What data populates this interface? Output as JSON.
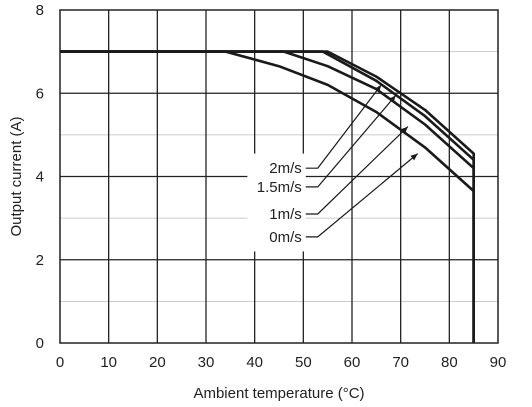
{
  "chart_data": {
    "type": "line",
    "xlabel": "Ambient temperature (°C)",
    "ylabel": "Output current (A)",
    "xlim": [
      0,
      90
    ],
    "ylim": [
      0,
      8
    ],
    "x_ticks": [
      0,
      10,
      20,
      30,
      40,
      50,
      60,
      70,
      80,
      90
    ],
    "y_ticks": [
      0,
      2,
      4,
      6,
      8
    ],
    "grid": true,
    "series": [
      {
        "name": "2m/s",
        "x": [
          0,
          55,
          65,
          75,
          85,
          85
        ],
        "y": [
          7.0,
          7.0,
          6.4,
          5.6,
          4.55,
          0
        ]
      },
      {
        "name": "1.5m/s",
        "x": [
          0,
          54,
          65,
          75,
          85,
          85
        ],
        "y": [
          7.0,
          7.0,
          6.3,
          5.45,
          4.4,
          0
        ]
      },
      {
        "name": "1m/s",
        "x": [
          0,
          46,
          55,
          65,
          75,
          85,
          85
        ],
        "y": [
          7.0,
          7.0,
          6.65,
          6.1,
          5.25,
          4.2,
          0
        ]
      },
      {
        "name": "0m/s",
        "x": [
          0,
          34,
          45,
          55,
          65,
          75,
          85,
          85
        ],
        "y": [
          7.0,
          7.0,
          6.65,
          6.2,
          5.55,
          4.7,
          3.65,
          0
        ]
      }
    ],
    "annotations": [
      {
        "label": "2m/s",
        "text_at": [
          50.5,
          4.2
        ],
        "arrow_to": [
          66,
          6.2
        ]
      },
      {
        "label": "1.5m/s",
        "text_at": [
          50.5,
          3.75
        ],
        "arrow_to": [
          69,
          5.95
        ]
      },
      {
        "label": "1m/s",
        "text_at": [
          50.5,
          3.1
        ],
        "arrow_to": [
          71.5,
          5.2
        ]
      },
      {
        "label": "0m/s",
        "text_at": [
          50.5,
          2.55
        ],
        "arrow_to": [
          73.5,
          4.55
        ]
      }
    ]
  }
}
